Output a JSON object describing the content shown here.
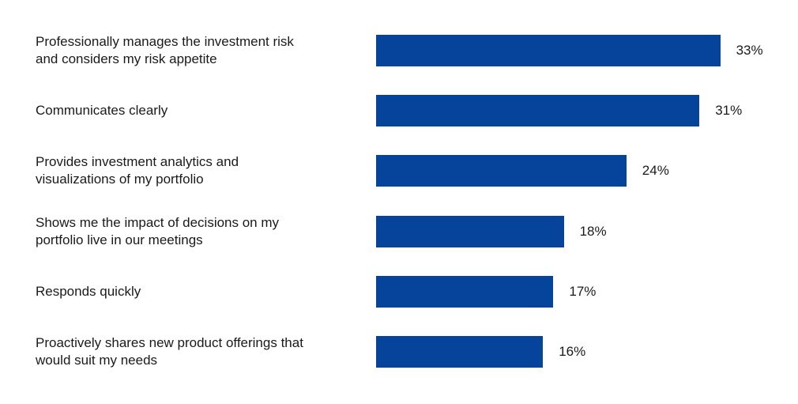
{
  "chart_data": {
    "type": "bar",
    "orientation": "horizontal",
    "categories": [
      "Professionally manages the investment risk\nand considers my risk appetite",
      "Communicates clearly",
      "Provides investment analytics and\nvisualizations of my portfolio",
      "Shows me the impact of decisions on my\nportfolio live in our meetings",
      "Responds quickly",
      "Proactively shares new product offerings that\nwould suit my needs"
    ],
    "values": [
      33,
      31,
      24,
      18,
      17,
      16
    ],
    "value_labels": [
      "33%",
      "31%",
      "24%",
      "18%",
      "17%",
      "16%"
    ],
    "unit": "%",
    "grid": false,
    "legend": "none",
    "bar_color": "#05449a"
  }
}
